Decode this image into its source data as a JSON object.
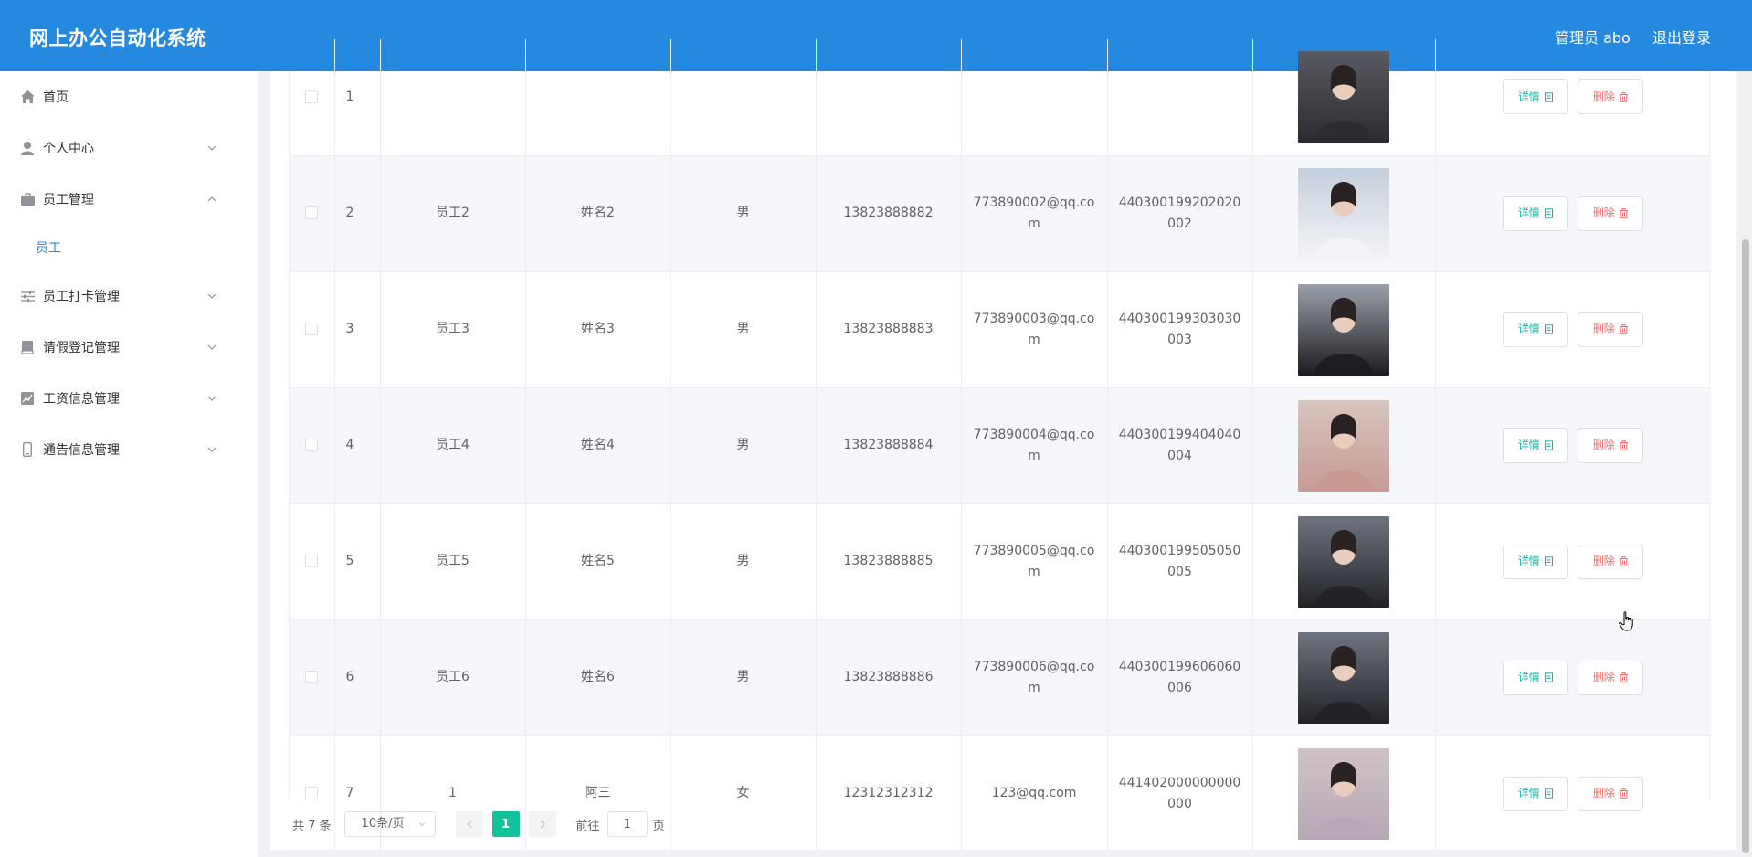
{
  "header": {
    "title": "网上办公自动化系统",
    "user": "管理员 abo",
    "logout": "退出登录"
  },
  "sidebar": {
    "items": [
      {
        "label": "首页",
        "icon": "home-icon"
      },
      {
        "label": "个人中心",
        "icon": "user-icon"
      },
      {
        "label": "员工管理",
        "icon": "briefcase-icon"
      },
      {
        "label": "员工打卡管理",
        "icon": "sliders-icon"
      },
      {
        "label": "请假登记管理",
        "icon": "book-icon"
      },
      {
        "label": "工资信息管理",
        "icon": "chart-icon"
      },
      {
        "label": "通告信息管理",
        "icon": "phone-icon"
      }
    ],
    "sub_active": "员工"
  },
  "table": {
    "rows": [
      {
        "index": "1",
        "emp_no": "",
        "name": "",
        "gender": "",
        "phone": "",
        "email": "",
        "id_card": ""
      },
      {
        "index": "2",
        "emp_no": "员工2",
        "name": "姓名2",
        "gender": "男",
        "phone": "13823888882",
        "email": "773890002@qq.com",
        "id_card": "440300199202020002"
      },
      {
        "index": "3",
        "emp_no": "员工3",
        "name": "姓名3",
        "gender": "男",
        "phone": "13823888883",
        "email": "773890003@qq.com",
        "id_card": "440300199303030003"
      },
      {
        "index": "4",
        "emp_no": "员工4",
        "name": "姓名4",
        "gender": "男",
        "phone": "13823888884",
        "email": "773890004@qq.com",
        "id_card": "440300199404040004"
      },
      {
        "index": "5",
        "emp_no": "员工5",
        "name": "姓名5",
        "gender": "男",
        "phone": "13823888885",
        "email": "773890005@qq.com",
        "id_card": "440300199505050005"
      },
      {
        "index": "6",
        "emp_no": "员工6",
        "name": "姓名6",
        "gender": "男",
        "phone": "13823888886",
        "email": "773890006@qq.com",
        "id_card": "440300199606060006"
      },
      {
        "index": "7",
        "emp_no": "1",
        "name": "阿三",
        "gender": "女",
        "phone": "12312312312",
        "email": "123@qq.com",
        "id_card": "441402000000000000"
      }
    ],
    "detail_label": "详情",
    "delete_label": "删除"
  },
  "pagination": {
    "total": "共 7 条",
    "page_size": "10条/页",
    "current_page": "1",
    "goto_label": "前往",
    "goto_value": "1",
    "page_suffix": "页"
  },
  "colors": {
    "header": "#2589e0",
    "active_page": "#13c29a",
    "detail": "#17b3a3",
    "delete": "#f56c6c"
  }
}
